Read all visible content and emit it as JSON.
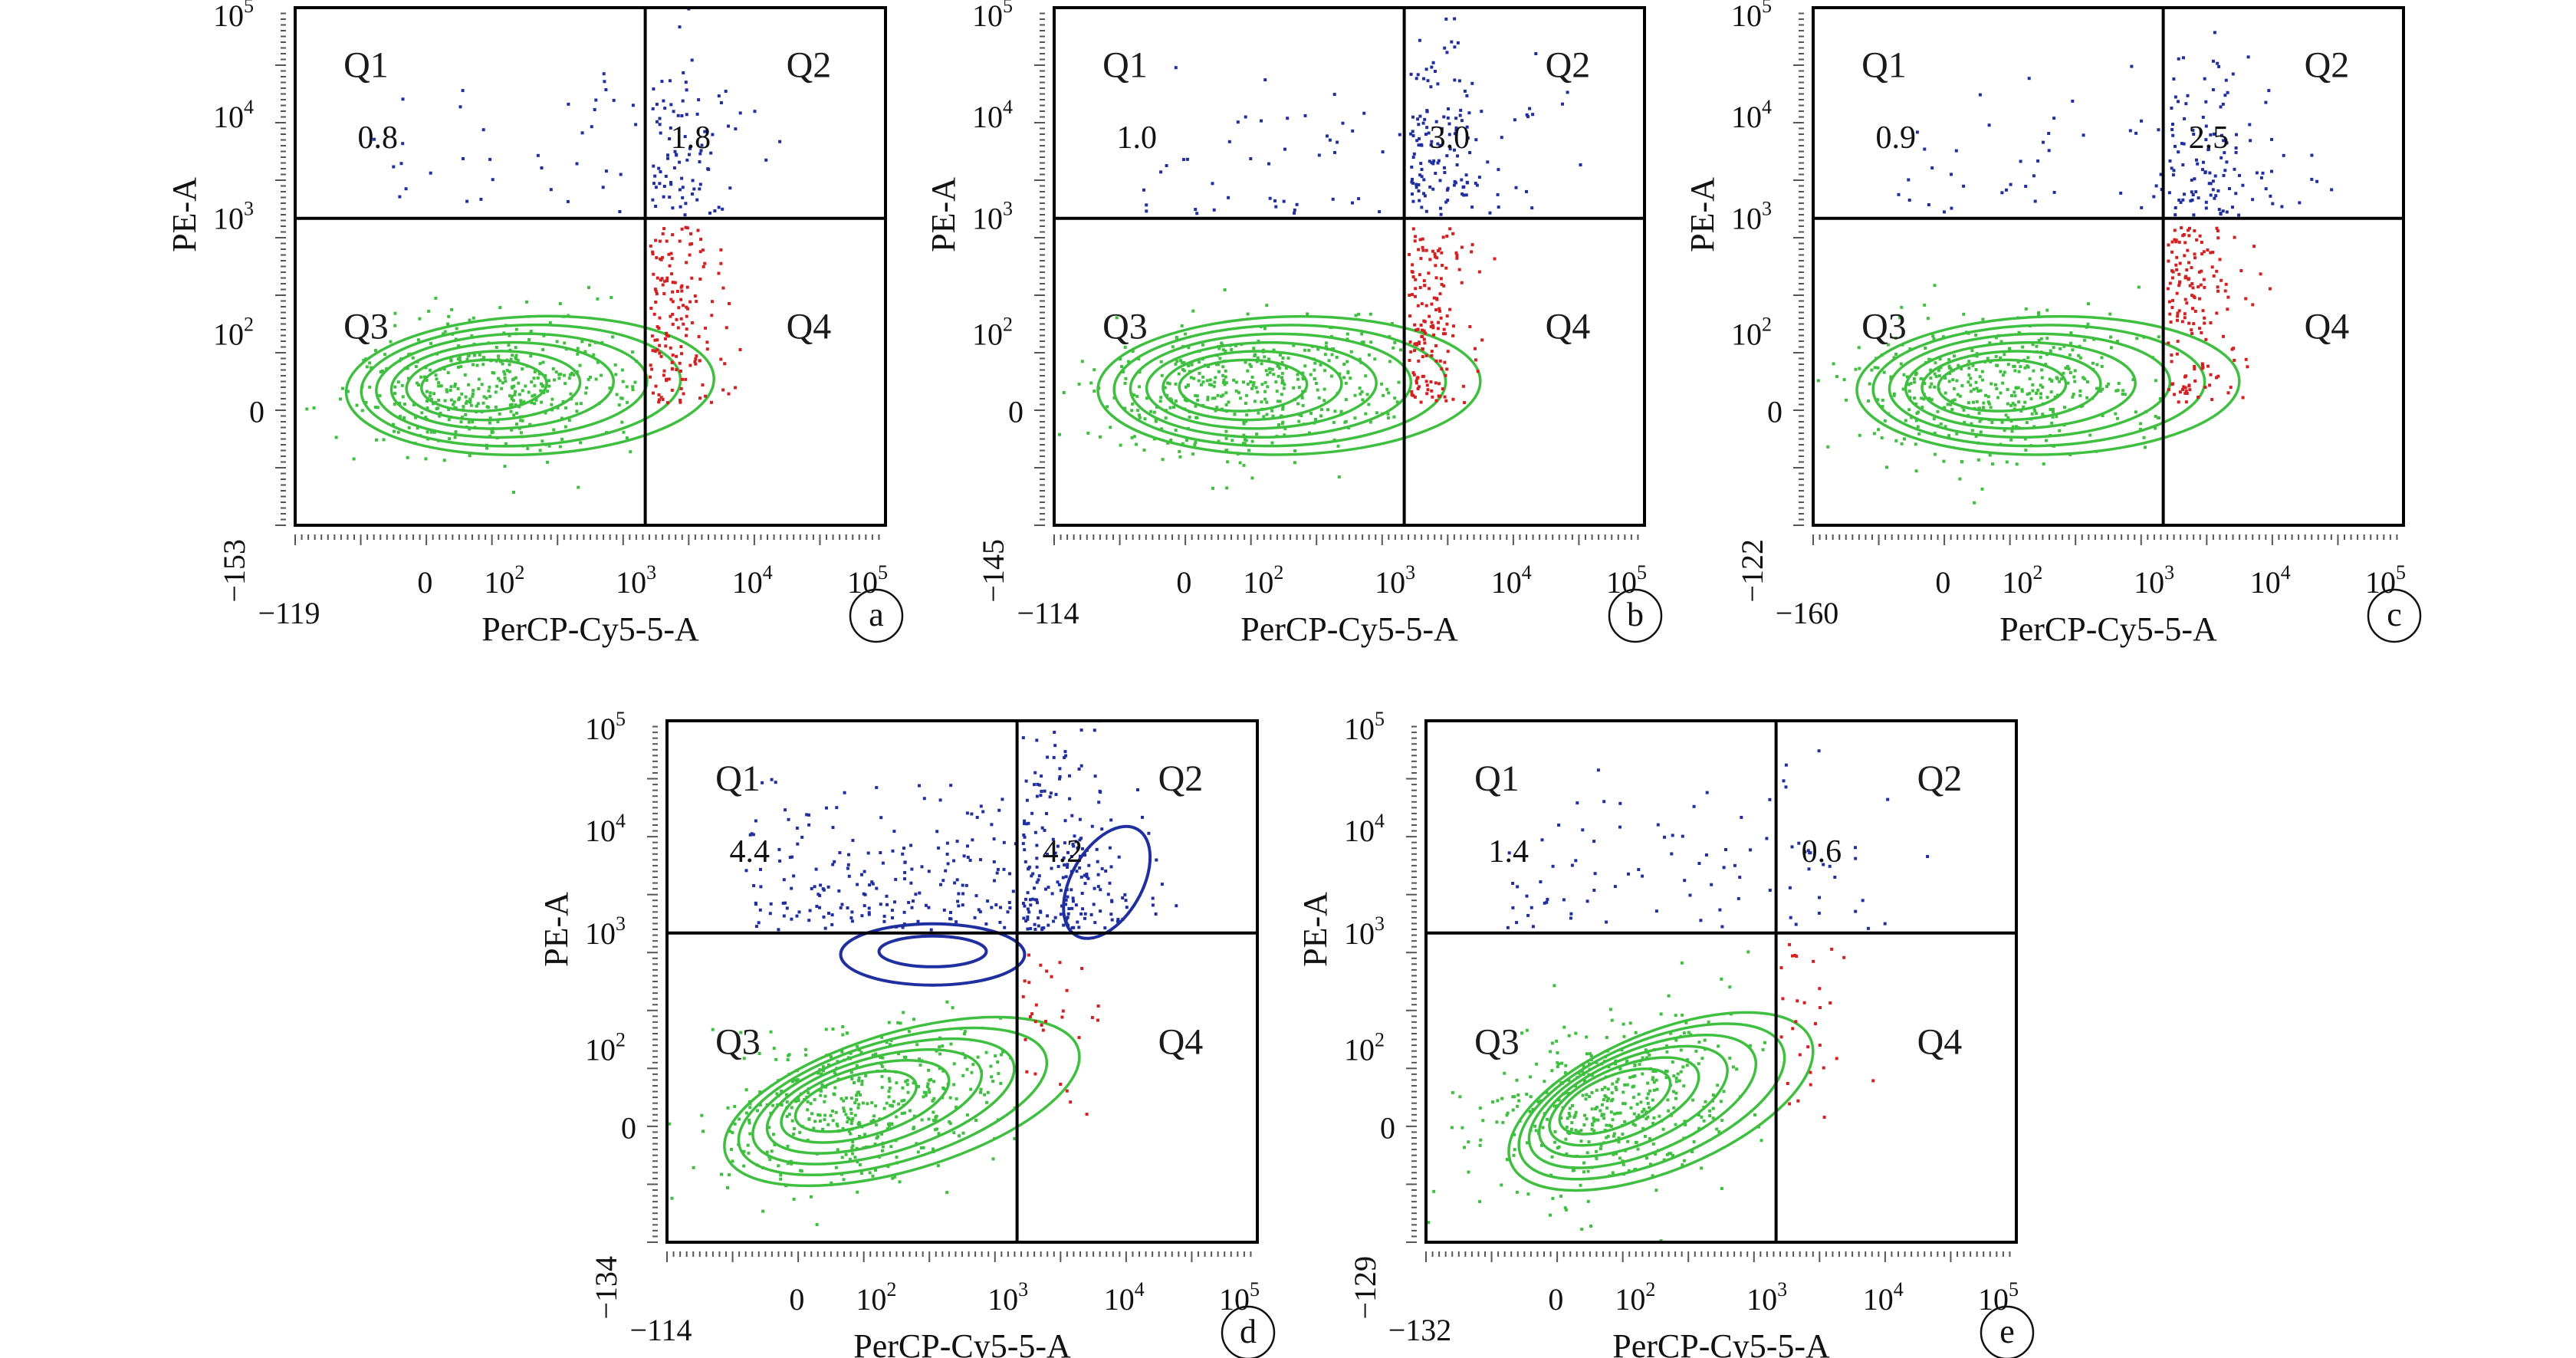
{
  "chart_data": [
    {
      "type": "scatter",
      "panel_label": "a",
      "xlabel": "PerCP-Cy5-5-A",
      "ylabel": "PE-A",
      "quadrants": {
        "Q1": "0.8",
        "Q2": "1.8",
        "Q3": "",
        "Q4": ""
      },
      "x_min_label": "−119",
      "y_min_label": "−153",
      "x_gate": 1000,
      "y_gate": 1000
    },
    {
      "type": "scatter",
      "panel_label": "b",
      "xlabel": "PerCP-Cy5-5-A",
      "ylabel": "PE-A",
      "quadrants": {
        "Q1": "1.0",
        "Q2": "3.0",
        "Q3": "",
        "Q4": ""
      },
      "x_min_label": "−114",
      "y_min_label": "−145",
      "x_gate": 1000,
      "y_gate": 1000
    },
    {
      "type": "scatter",
      "panel_label": "c",
      "xlabel": "PerCP-Cy5-5-A",
      "ylabel": "PE-A",
      "quadrants": {
        "Q1": "0.9",
        "Q2": "2.5",
        "Q3": "",
        "Q4": ""
      },
      "x_min_label": "−160",
      "y_min_label": "−122",
      "x_gate": 1000,
      "y_gate": 1000
    },
    {
      "type": "scatter",
      "panel_label": "d",
      "xlabel": "PerCP-Cy5-5-A",
      "ylabel": "PE-A",
      "quadrants": {
        "Q1": "4.4",
        "Q2": "4.2",
        "Q3": "",
        "Q4": ""
      },
      "x_min_label": "−114",
      "y_min_label": "−134",
      "x_gate": 1000,
      "y_gate": 1000
    },
    {
      "type": "scatter",
      "panel_label": "e",
      "xlabel": "PerCP-Cy5-5-A",
      "ylabel": "PE-A",
      "quadrants": {
        "Q1": "1.4",
        "Q2": "0.6",
        "Q3": "",
        "Q4": ""
      },
      "x_min_label": "−132",
      "y_min_label": "−129",
      "x_gate": 1000,
      "y_gate": 1000
    }
  ],
  "common": {
    "quadrant_names": [
      "Q1",
      "Q2",
      "Q3",
      "Q4"
    ],
    "x_ticks": [
      {
        "base": "0",
        "exp": ""
      },
      {
        "base": "10",
        "exp": "2"
      },
      {
        "base": "10",
        "exp": "3"
      },
      {
        "base": "10",
        "exp": "4"
      },
      {
        "base": "10",
        "exp": "5"
      }
    ],
    "y_ticks": [
      {
        "base": "0",
        "exp": ""
      },
      {
        "base": "10",
        "exp": "2"
      },
      {
        "base": "10",
        "exp": "3"
      },
      {
        "base": "10",
        "exp": "4"
      },
      {
        "base": "10",
        "exp": "5"
      }
    ],
    "x_scale": "biexponential",
    "y_scale": "biexponential",
    "colors": {
      "Q3_population": "#3fbf3f",
      "Q1_Q2_events": "#1f2f9f",
      "Q4_events": "#d42020",
      "quadrant_lines": "#000000"
    }
  }
}
